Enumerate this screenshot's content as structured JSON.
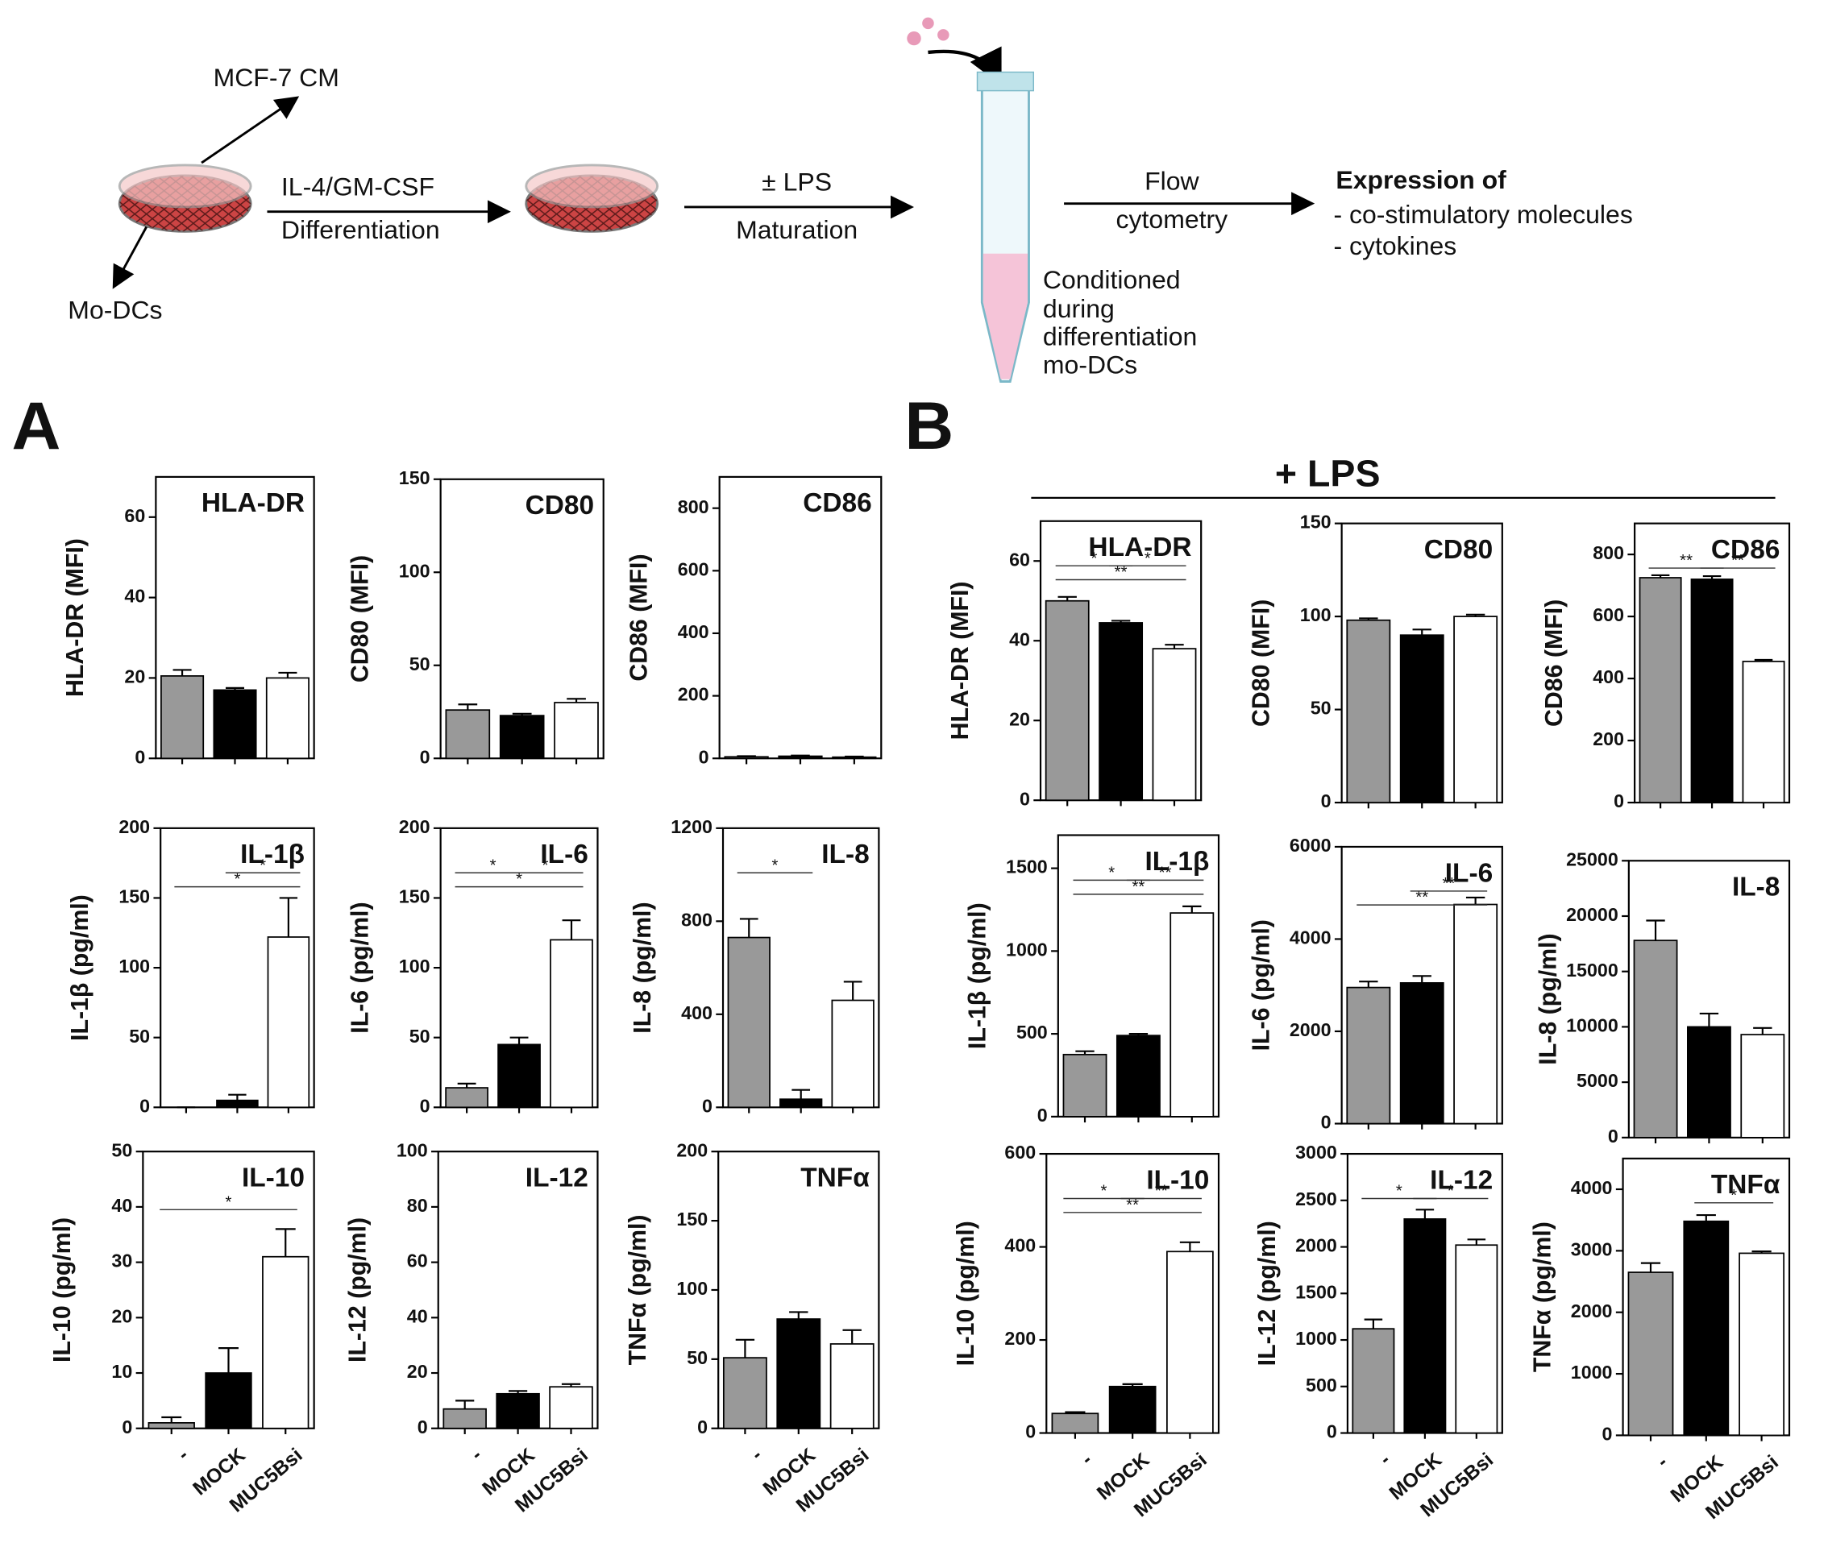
{
  "diagram": {
    "cm": "MCF-7 CM",
    "modc": "Mo-DCs",
    "il4": "IL-4/GM-CSF",
    "diff": "Differentiation",
    "lps": "± LPS",
    "mat": "Maturation",
    "flow": "Flow",
    "cyto": "cytometry",
    "cond": [
      "Conditioned",
      "during",
      "differentiation",
      "mo-DCs"
    ],
    "expr": "Expression of",
    "expr_items": [
      "- co-stimulatory molecules",
      "- cytokines"
    ]
  },
  "panels": {
    "a": "A",
    "b": "B",
    "lps": "+ LPS"
  },
  "chart_data": [
    {
      "type": "bar",
      "title": "HLA-DR",
      "ylabel": "HLA-DR (MFI)",
      "categories": [
        null,
        null,
        null
      ],
      "values": [
        20.5,
        17,
        20
      ],
      "errors": [
        1.5,
        0.5,
        1.3
      ],
      "colors": [
        "#999999",
        "#000000",
        "#ffffff"
      ],
      "ylim": [
        0,
        70
      ],
      "yticks": [
        0,
        20,
        40,
        60
      ],
      "annotations": []
    },
    {
      "type": "bar",
      "title": "CD80",
      "ylabel": "CD80 (MFI)",
      "categories": [
        null,
        null,
        null
      ],
      "values": [
        26,
        23,
        30
      ],
      "errors": [
        3,
        1,
        2
      ],
      "colors": [
        "#999999",
        "#000000",
        "#ffffff"
      ],
      "ylim": [
        0,
        150
      ],
      "yticks": [
        0,
        50,
        100,
        150
      ],
      "annotations": []
    },
    {
      "type": "bar",
      "title": "CD86",
      "ylabel": "CD86 (MFI)",
      "categories": [
        null,
        null,
        null
      ],
      "values": [
        5,
        7,
        4
      ],
      "errors": [
        2,
        2,
        2
      ],
      "colors": [
        "#999999",
        "#000000",
        "#ffffff"
      ],
      "ylim": [
        0,
        900
      ],
      "yticks": [
        0,
        200,
        400,
        600,
        800
      ],
      "annotations": []
    },
    {
      "type": "bar",
      "title": "IL-1β",
      "ylabel": "IL-1β (pg/ml)",
      "categories": [
        null,
        null,
        null
      ],
      "values": [
        0,
        5,
        122
      ],
      "errors": [
        0,
        4,
        28
      ],
      "colors": [
        "#999999",
        "#000000",
        "#ffffff"
      ],
      "ylim": [
        0,
        200
      ],
      "yticks": [
        0,
        50,
        100,
        150,
        200
      ],
      "annotations": [
        {
          "text": "*",
          "between": [
            0,
            2
          ]
        },
        {
          "text": "*",
          "between": [
            1,
            2
          ]
        }
      ]
    },
    {
      "type": "bar",
      "title": "IL-6",
      "ylabel": "IL-6 (pg/ml)",
      "categories": [
        null,
        null,
        null
      ],
      "values": [
        14,
        45,
        120
      ],
      "errors": [
        3,
        5,
        14
      ],
      "colors": [
        "#999999",
        "#000000",
        "#ffffff"
      ],
      "ylim": [
        0,
        200
      ],
      "yticks": [
        0,
        50,
        100,
        150,
        200
      ],
      "annotations": [
        {
          "text": "*",
          "between": [
            0,
            1
          ]
        },
        {
          "text": "*",
          "between": [
            1,
            2
          ]
        },
        {
          "text": "*",
          "between": [
            0,
            2
          ]
        }
      ]
    },
    {
      "type": "bar",
      "title": "IL-8",
      "ylabel": "IL-8 (pg/ml)",
      "categories": [
        null,
        null,
        null
      ],
      "values": [
        730,
        35,
        460
      ],
      "errors": [
        80,
        40,
        80
      ],
      "colors": [
        "#999999",
        "#000000",
        "#ffffff"
      ],
      "ylim": [
        0,
        1200
      ],
      "yticks": [
        0,
        400,
        800,
        1200
      ],
      "annotations": [
        {
          "text": "*",
          "between": [
            0,
            1
          ]
        }
      ]
    },
    {
      "type": "bar",
      "title": "IL-10",
      "ylabel": "IL-10 (pg/ml)",
      "categories": [
        "-",
        "MOCK",
        "MUC5Bsi"
      ],
      "values": [
        1,
        10,
        31
      ],
      "errors": [
        1,
        4.5,
        5
      ],
      "colors": [
        "#999999",
        "#000000",
        "#ffffff"
      ],
      "ylim": [
        0,
        50
      ],
      "yticks": [
        0,
        10,
        20,
        30,
        40,
        50
      ],
      "annotations": [
        {
          "text": "*",
          "between": [
            0,
            2
          ]
        }
      ]
    },
    {
      "type": "bar",
      "title": "IL-12",
      "ylabel": "IL-12 (pg/ml)",
      "categories": [
        "-",
        "MOCK",
        "MUC5Bsi"
      ],
      "values": [
        7,
        12.5,
        15
      ],
      "errors": [
        3,
        1,
        1
      ],
      "colors": [
        "#999999",
        "#000000",
        "#ffffff"
      ],
      "ylim": [
        0,
        100
      ],
      "yticks": [
        0,
        20,
        40,
        60,
        80,
        100
      ],
      "annotations": []
    },
    {
      "type": "bar",
      "title": "TNFα",
      "ylabel": "TNFα (pg/ml)",
      "categories": [
        "-",
        "MOCK",
        "MUC5Bsi"
      ],
      "values": [
        51,
        79,
        61
      ],
      "errors": [
        13,
        5,
        10
      ],
      "colors": [
        "#999999",
        "#000000",
        "#ffffff"
      ],
      "ylim": [
        0,
        200
      ],
      "yticks": [
        0,
        50,
        100,
        150,
        200
      ],
      "annotations": []
    },
    {
      "type": "bar",
      "title": "HLA-DR",
      "ylabel": "HLA-DR (MFI)",
      "categories": [
        null,
        null,
        null
      ],
      "values": [
        50,
        44.5,
        38
      ],
      "errors": [
        1,
        0.5,
        1
      ],
      "colors": [
        "#999999",
        "#000000",
        "#ffffff"
      ],
      "ylim": [
        0,
        70
      ],
      "yticks": [
        0,
        20,
        40,
        60
      ],
      "annotations": [
        {
          "text": "*",
          "between": [
            0,
            1
          ]
        },
        {
          "text": "*",
          "between": [
            1,
            2
          ]
        },
        {
          "text": "**",
          "between": [
            0,
            2
          ]
        }
      ]
    },
    {
      "type": "bar",
      "title": "CD80",
      "ylabel": "CD80 (MFI)",
      "categories": [
        null,
        null,
        null
      ],
      "values": [
        98,
        90,
        100
      ],
      "errors": [
        1,
        3,
        1
      ],
      "colors": [
        "#999999",
        "#000000",
        "#ffffff"
      ],
      "ylim": [
        0,
        150
      ],
      "yticks": [
        0,
        50,
        100,
        150
      ],
      "annotations": []
    },
    {
      "type": "bar",
      "title": "CD86",
      "ylabel": "CD86 (MFI)",
      "categories": [
        null,
        null,
        null
      ],
      "values": [
        725,
        720,
        455
      ],
      "errors": [
        8,
        10,
        5
      ],
      "colors": [
        "#999999",
        "#000000",
        "#ffffff"
      ],
      "ylim": [
        0,
        900
      ],
      "yticks": [
        0,
        200,
        400,
        600,
        800
      ],
      "annotations": [
        {
          "text": "**",
          "between": [
            0,
            1
          ]
        },
        {
          "text": "**",
          "between": [
            1,
            2
          ]
        }
      ]
    },
    {
      "type": "bar",
      "title": "IL-1β",
      "ylabel": "IL-1β (pg/ml)",
      "categories": [
        null,
        null,
        null
      ],
      "values": [
        375,
        490,
        1230
      ],
      "errors": [
        20,
        10,
        40
      ],
      "colors": [
        "#999999",
        "#000000",
        "#ffffff"
      ],
      "ylim": [
        0,
        1700
      ],
      "yticks": [
        0,
        500,
        1000,
        1500
      ],
      "annotations": [
        {
          "text": "*",
          "between": [
            0,
            1
          ]
        },
        {
          "text": "**",
          "between": [
            1,
            2
          ]
        },
        {
          "text": "**",
          "between": [
            0,
            2
          ]
        }
      ]
    },
    {
      "type": "bar",
      "title": "IL-6",
      "ylabel": "IL-6 (pg/ml)",
      "categories": [
        null,
        null,
        null
      ],
      "values": [
        2950,
        3050,
        4750
      ],
      "errors": [
        130,
        150,
        150
      ],
      "colors": [
        "#999999",
        "#000000",
        "#ffffff"
      ],
      "ylim": [
        0,
        6000
      ],
      "yticks": [
        0,
        2000,
        4000,
        6000
      ],
      "annotations": [
        {
          "text": "**",
          "between": [
            0,
            2
          ]
        },
        {
          "text": "**",
          "between": [
            1,
            2
          ]
        }
      ]
    },
    {
      "type": "bar",
      "title": "IL-8",
      "ylabel": "IL-8 (pg/ml)",
      "categories": [
        null,
        null,
        null
      ],
      "values": [
        17800,
        10000,
        9300
      ],
      "errors": [
        1800,
        1200,
        600
      ],
      "colors": [
        "#999999",
        "#000000",
        "#ffffff"
      ],
      "ylim": [
        0,
        25000
      ],
      "yticks": [
        0,
        5000,
        10000,
        15000,
        20000,
        25000
      ],
      "annotations": []
    },
    {
      "type": "bar",
      "title": "IL-10",
      "ylabel": "IL-10 (pg/ml)",
      "categories": [
        "-",
        "MOCK",
        "MUC5Bsi"
      ],
      "values": [
        42,
        100,
        390
      ],
      "errors": [
        3,
        5,
        20
      ],
      "colors": [
        "#999999",
        "#000000",
        "#ffffff"
      ],
      "ylim": [
        0,
        600
      ],
      "yticks": [
        0,
        200,
        400,
        600
      ],
      "annotations": [
        {
          "text": "*",
          "between": [
            0,
            1
          ]
        },
        {
          "text": "**",
          "between": [
            1,
            2
          ]
        },
        {
          "text": "**",
          "between": [
            0,
            2
          ]
        }
      ]
    },
    {
      "type": "bar",
      "title": "IL-12",
      "ylabel": "IL-12 (pg/ml)",
      "categories": [
        "-",
        "MOCK",
        "MUC5Bsi"
      ],
      "values": [
        1120,
        2300,
        2020
      ],
      "errors": [
        100,
        100,
        60
      ],
      "colors": [
        "#999999",
        "#000000",
        "#ffffff"
      ],
      "ylim": [
        0,
        3000
      ],
      "yticks": [
        0,
        500,
        1000,
        1500,
        2000,
        2500,
        3000
      ],
      "annotations": [
        {
          "text": "*",
          "between": [
            0,
            1
          ]
        },
        {
          "text": "*",
          "between": [
            1,
            2
          ]
        }
      ]
    },
    {
      "type": "bar",
      "title": "TNFα",
      "ylabel": "TNFα (pg/ml)",
      "categories": [
        "-",
        "MOCK",
        "MUC5Bsi"
      ],
      "values": [
        2650,
        3480,
        2960
      ],
      "errors": [
        150,
        100,
        30
      ],
      "colors": [
        "#999999",
        "#000000",
        "#ffffff"
      ],
      "ylim": [
        0,
        4500
      ],
      "yticks": [
        0,
        1000,
        2000,
        3000,
        4000
      ],
      "annotations": [
        {
          "text": "*",
          "between": [
            1,
            2
          ]
        }
      ]
    }
  ]
}
